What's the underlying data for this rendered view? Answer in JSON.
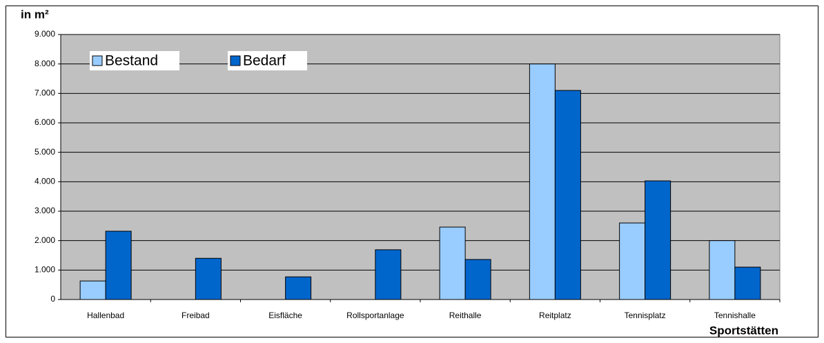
{
  "chart_data": {
    "type": "bar",
    "y_label": "in m²",
    "x_label": "Sportstätten",
    "categories": [
      "Hallenbad",
      "Freibad",
      "Eisfläche",
      "Rollsportanlage",
      "Reithalle",
      "Reitplatz",
      "Tennisplatz",
      "Tennishalle"
    ],
    "series": [
      {
        "name": "Bestand",
        "color": "#99ccff",
        "values": [
          630,
          0,
          0,
          0,
          2460,
          8000,
          2600,
          2000
        ]
      },
      {
        "name": "Bedarf",
        "color": "#0066cc",
        "values": [
          2320,
          1400,
          770,
          1690,
          1360,
          7100,
          4030,
          1100
        ]
      }
    ],
    "ylim": [
      0,
      9000
    ],
    "yticks": [
      0,
      {
        "value": 1000,
        "label": "1.000"
      },
      {
        "value": 2000,
        "label": "2.000"
      },
      {
        "value": 3000,
        "label": "3.000"
      },
      {
        "value": 4000,
        "label": "4.000"
      },
      {
        "value": 5000,
        "label": "5.000"
      },
      {
        "value": 6000,
        "label": "6.000"
      },
      {
        "value": 7000,
        "label": "7.000"
      },
      {
        "value": 8000,
        "label": "8.000"
      },
      {
        "value": 9000,
        "label": "9.000"
      }
    ],
    "grid": true,
    "legend": "top-left",
    "plot_background": "#c0c0c0"
  }
}
